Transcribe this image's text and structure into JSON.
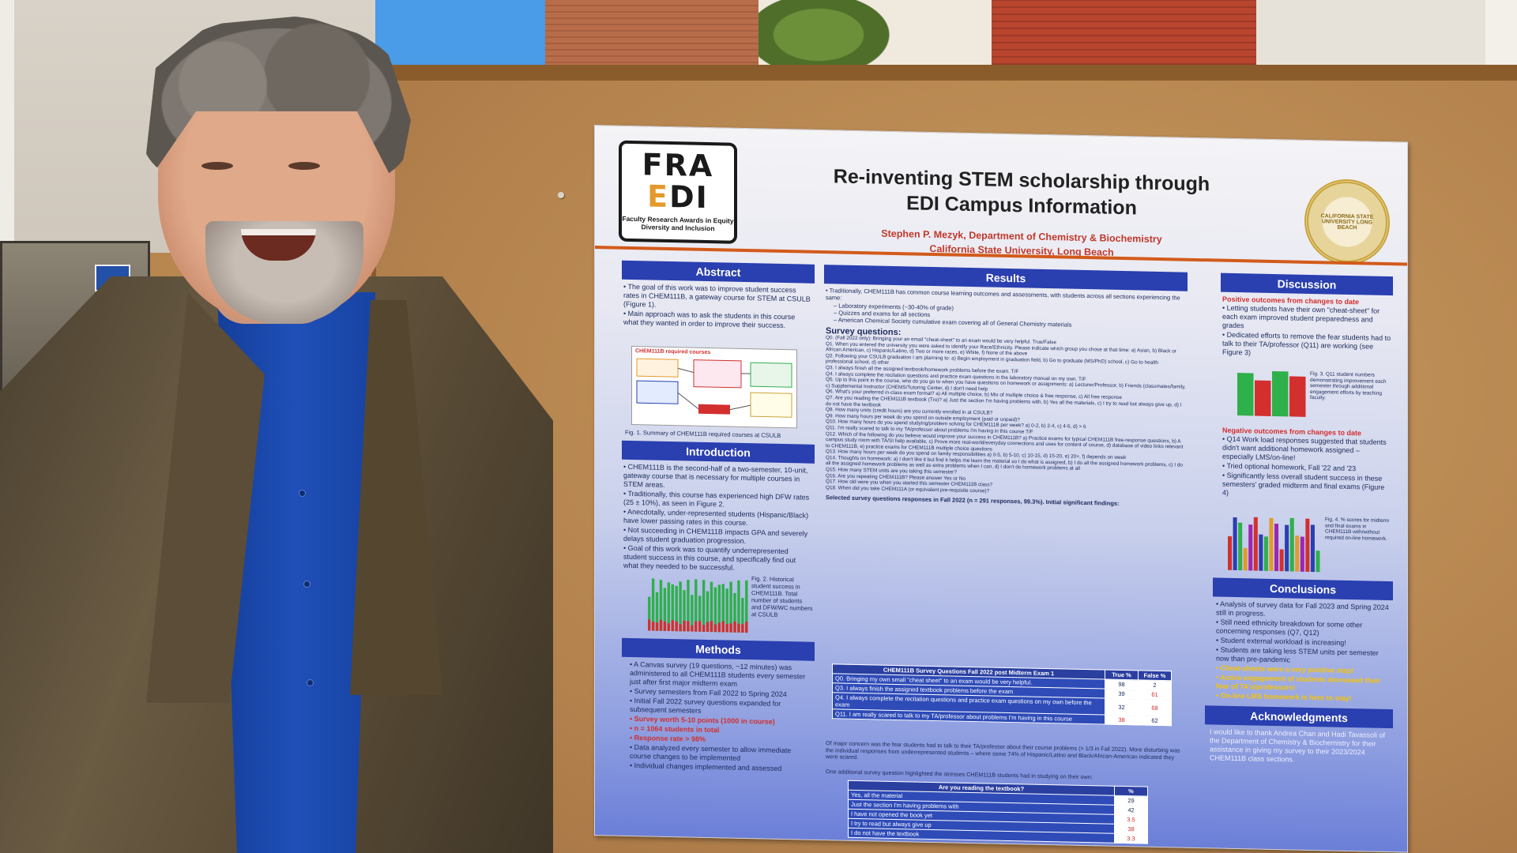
{
  "poster": {
    "logo": {
      "letters_top_left": "FR",
      "letters_top_right": "A",
      "letters_bottom_left": "E",
      "letters_bottom_right": "DI",
      "caption": "Faculty Research Awards in Equity Diversity and Inclusion"
    },
    "title": "Re-inventing STEM scholarship through EDI Campus Information",
    "author": "Stephen P. Mezyk, Department of Chemistry & Biochemistry",
    "affiliation": "California State University, Long Beach",
    "seal_text": "CALIFORNIA STATE UNIVERSITY LONG BEACH",
    "sections": {
      "abstract": {
        "heading": "Abstract",
        "bullets": [
          "The goal of this work was to improve student success rates in CHEM111B, a gateway course for STEM at CSULB (Figure 1).",
          "Main approach was to ask the students in this course what they wanted in order to improve their success."
        ],
        "figure_title": "CHEM111B required courses",
        "figure_caption": "Fig. 1. Summary of CHEM111B required courses at CSULB"
      },
      "introduction": {
        "heading": "Introduction",
        "bullets": [
          "CHEM111B is the second-half of a two-semester, 10-unit, gateway course that is necessary for multiple courses in STEM areas.",
          "Traditionally, this course has experienced high DFW rates (25 ± 10%), as seen in Figure 2.",
          "Anecdotally, under-represented students (Hispanic/Black) have lower passing rates in this course.",
          "Not succeeding in CHEM111B impacts GPA and severely delays student graduation progression.",
          "Goal of this work was to quantify underrepresented student success in this course, and specifically find out what they needed to be successful."
        ],
        "figure_caption": "Fig. 2. Historical student success in CHEM111B. Total number of students and DFW/WC numbers at CSULB"
      },
      "methods": {
        "heading": "Methods",
        "bullets": [
          "A Canvas survey (19 questions, ~12 minutes) was administered to all CHEM111B students every semester just after first major midterm exam",
          "Survey semesters from Fall 2022 to Spring 2024",
          "Initial Fall 2022 survey questions expanded for subsequent semesters",
          "Survey worth 5-10 points (1000 in course)",
          "n = 1064 students in total",
          "Response rate > 98%",
          "Data analyzed every semester to allow immediate course changes to be implemented",
          "Individual changes implemented and assessed"
        ]
      },
      "results": {
        "heading": "Results",
        "intro_bullet": "Traditionally, CHEM111B has common course learning outcomes and assessments, with students across all sections experiencing the same:",
        "sub_items": [
          "– Laboratory experiments (~30-40% of grade)",
          "– Quizzes and exams for all sections",
          "– American Chemical Society cumulative exam covering all of General Chemistry materials"
        ],
        "survey_heading": "Survey questions:",
        "questions": [
          "Q0. (Fall 2022 only): Bringing your an email \"cheat-sheet\" to an exam would be very helpful. True/False",
          "Q1. When you entered the university you were asked to identify your Race/Ethnicity. Please indicate which group you chose at that time: a) Asian, b) Black or African American, c) Hispanic/Latino, d) Two or more races, e) White, f) None of the above",
          "Q2. Following your CSULB graduation I am planning to: a) Begin employment in graduation field, b) Go to graduate (MS/PhD) school, c) Go to health professional school, d) other",
          "Q3. I always finish all the assigned textbook/homework problems before the exam. T/F",
          "Q4. I always complete the recitation questions and practice exam questions in the laboratory manual on my own. T/F",
          "Q5. Up to this point in the course, who do you go to when you have questions on homework or assignments: a) Lecturer/Professor, b) Friends (classmates/family, c) Supplemental Instructor (CHEMS/Tutoring Center, d) I don't need help",
          "Q6. What's your preferred in-class exam format? a) All multiple choice, b) Mix of multiple choice & free response, c) All free response",
          "Q7. Are you reading the CHEM111B textbook (Tro)? a) Just the section I'm having problems with, b) Yes all the materials, c) I try to read but always give up, d) I do not have the textbook",
          "Q8. How many units (credit hours) are you currently enrolled in at CSULB?",
          "Q9. How many hours per week do you spend on outside employment (paid or unpaid)?",
          "Q10. How many hours do you spend studying/problem solving for CHEM111B per week? a) 0-2, b) 2-4, c) 4-6, d) > 6",
          "Q11. I'm really scared to talk to my TA/professor about problems I'm having in this course T/F",
          "Q12. Which of the following do you believe would improve your success in CHEM111B? a) Practice exams for typical CHEM111B free-response questions, b) A campus study room with TA/SI help available, c) Prove more real-world/everyday connections and uses for content of course, d) database of video links relevant to CHEM111B, e) practice exams for CHEM111B multiple choice questions",
          "Q13. How many hours per week do you spend on family responsibilities a) 0-5, b) 5-10, c) 10-15, d) 15-20, e) 20+, f) depends on week",
          "Q14. Thoughts on homework: a) I don't like it but find it helps me learn the material so I do what is assigned, b) I do all the assigned homework problems, c) I do all the assigned homework problems as well as extra problems when I can, d) I don't do homework problems at all",
          "Q15. How many STEM units are you taking this semester?",
          "Q16. Are you repeating CHEM111B? Please answer Yes or No",
          "Q17. How old were you when you started this semester CHEM111B class?",
          "Q18. When did you take CHEM111A (or equivalent pre-requisite course)?"
        ],
        "findings_heading": "Selected survey questions responses in Fall 2022 (n = 291 responses, 99.3%). Initial significant findings:",
        "table": {
          "header": [
            "CHEM111B Survey Questions Fall 2022 post Midterm Exam 1",
            "True %",
            "False %"
          ],
          "rows": [
            [
              "Q0. Bringing my own small \"cheat sheet\" to an exam would be very helpful.",
              "98",
              "2"
            ],
            [
              "Q3. I always finish the assigned textbook problems before the exam",
              "39",
              "61"
            ],
            [
              "Q4. I always complete the recitation questions and practice exam questions on my own before the exam",
              "32",
              "68"
            ],
            [
              "Q11. I am really scared to talk to my TA/professor about problems I'm having in this course",
              "38",
              "62"
            ]
          ]
        },
        "concern_text": "Of major concern was the fear students had to talk to their TA/professor about their course problems (> 1/3 in Fall 2022). More disturbing was the individual responses from underrepresented students – where some 74% of Hispanic/Latino and Black/African-American indicated they were scared.",
        "extra_question_text": "One additional survey question highlighted the stresses CHEM111B students had in studying on their own:",
        "table2": {
          "header": [
            "Are you reading the textbook?",
            "%"
          ],
          "rows": [
            [
              "Yes, all the material",
              "29"
            ],
            [
              "Just the section I'm having problems with",
              "42"
            ],
            [
              "I have not opened the book yet",
              "3.5"
            ],
            [
              "I try to read but always give up",
              "38"
            ],
            [
              "I do not have the textbook",
              "3.3"
            ]
          ]
        }
      },
      "discussion": {
        "heading": "Discussion",
        "positive_heading": "Positive outcomes from changes to date",
        "positive_bullets": [
          "Letting students have their own \"cheat-sheet\" for each exam improved student preparedness and grades",
          "Dedicated efforts to remove the fear students had to talk to their TA/professor (Q11) are working (see Figure 3)"
        ],
        "fig3_caption": "Fig. 3. Q11 student numbers demonstrating improvement each semester through additional engagement efforts by teaching faculty.",
        "negative_heading": "Negative outcomes from changes to date",
        "negative_bullets": [
          "Q14 Work load responses suggested that students didn't want additional homework assigned – especially LMS/on-line!",
          "Tried optional homework, Fall '22 and '23",
          "Significantly less overall student success in these semesters' graded midterm and final exams (Figure 4)"
        ],
        "fig4_caption": "Fig. 4. % scores for midterm and final exams in CHEM111B with/without required on-line homework."
      },
      "conclusions": {
        "heading": "Conclusions",
        "bullets": [
          "Analysis of survey data for Fall 2023 and Spring 2024 still in progress.",
          "Still need ethnicity breakdown for some other concerning responses (Q7, Q12)",
          "Student external workload is increasing!",
          "Students are taking less STEM units per semester now than pre-pandemic"
        ],
        "highlight_bullets": [
          "Cheat-sheets were a very positive step!",
          "Active engagement of students decreased their fear of TA's/professors!",
          "On-line LMS homework is here to stay!"
        ]
      },
      "acknowledgments": {
        "heading": "Acknowledgments",
        "text": "I would like to thank Andrea Chan and Hadi Tavassoli of the Department of Chemistry & Biochemistry for their assistance in giving my survey to their 2023/2024 CHEM111B class sections."
      }
    }
  },
  "colors": {
    "section_header": "#2a3fb0",
    "author_red": "#c0392b",
    "highlight_yellow": "#f6c400",
    "logo_orange": "#e39a2a",
    "bar_green": "#2eb04a",
    "bar_red": "#d32f2f"
  }
}
